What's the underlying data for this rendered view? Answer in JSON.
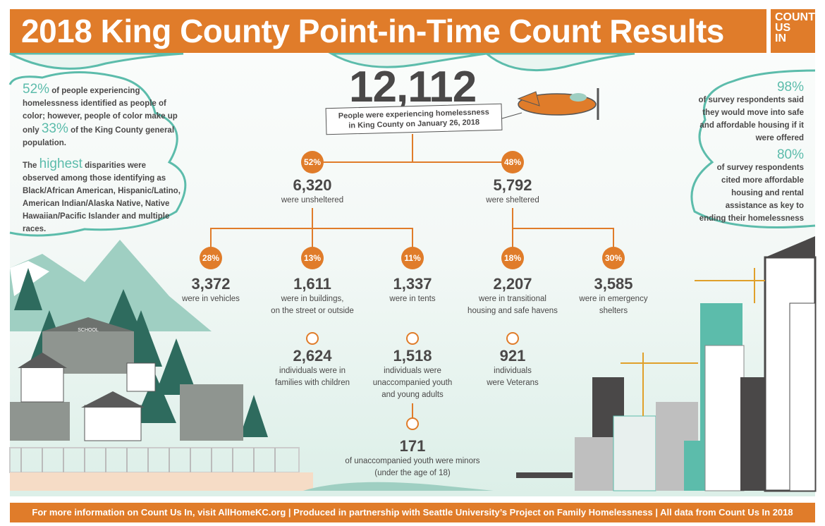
{
  "header": {
    "title": "2018 King County Point-in-Time Count Results",
    "logo_lines": [
      "COUNT",
      "US",
      "IN"
    ]
  },
  "total": {
    "value": "12,112",
    "caption_line1": "People were experiencing homelessness",
    "caption_line2": "in King County on January 26, 2018"
  },
  "left_note": {
    "pct1": "52%",
    "text1a": " of people experiencing homelessness identified as people of color; however, people of color make up only ",
    "pct2": "33%",
    "text1b": " of the King County general population.",
    "text2a": "The ",
    "highlight": "highest",
    "text2b": " disparities were observed among those identifying as Black/African American, Hispanic/Latino, American Indian/Alaska Native, Native Hawaiian/Pacific Islander and multiple races."
  },
  "right_note": {
    "pct1": "98%",
    "text1": "of survey respondents said they would move into safe and affordable housing if it were offered",
    "pct2": "80%",
    "text2": "of survey respondents cited more affordable housing and rental assistance as key to ending their homelessness"
  },
  "tree": {
    "unsheltered": {
      "pct": "52%",
      "value": "6,320",
      "label": "were unsheltered"
    },
    "sheltered": {
      "pct": "48%",
      "value": "5,792",
      "label": "were sheltered"
    },
    "vehicles": {
      "pct": "28%",
      "value": "3,372",
      "label": "were in vehicles"
    },
    "buildings": {
      "pct": "13%",
      "value": "1,611",
      "label1": "were in buildings,",
      "label2": "on the street or outside"
    },
    "tents": {
      "pct": "11%",
      "value": "1,337",
      "label": "were in tents"
    },
    "transitional": {
      "pct": "18%",
      "value": "2,207",
      "label1": "were in transitional",
      "label2": "housing and safe havens"
    },
    "emergency": {
      "pct": "30%",
      "value": "3,585",
      "label1": "were in emergency",
      "label2": "shelters"
    },
    "families": {
      "value": "2,624",
      "label1": "individuals were in",
      "label2": "families with children"
    },
    "youth": {
      "value": "1,518",
      "label1": "individuals were",
      "label2": "unaccompanied youth",
      "label3": "and young adults"
    },
    "veterans": {
      "value": "921",
      "label1": "individuals",
      "label2": "were Veterans"
    },
    "minors": {
      "value": "171",
      "label1": "of unaccompanied youth were minors",
      "label2": "(under the age of 18)"
    }
  },
  "scene": {
    "school_sign": "SCHOOL"
  },
  "footer": {
    "text": "For more information on Count Us In, visit AllHomeKC.org | Produced in partnership with Seattle University’s Project on Family Homelessness | All data from Count Us In 2018"
  },
  "colors": {
    "orange": "#e07c2a",
    "teal": "#5cbcab",
    "text": "#4a4848"
  }
}
